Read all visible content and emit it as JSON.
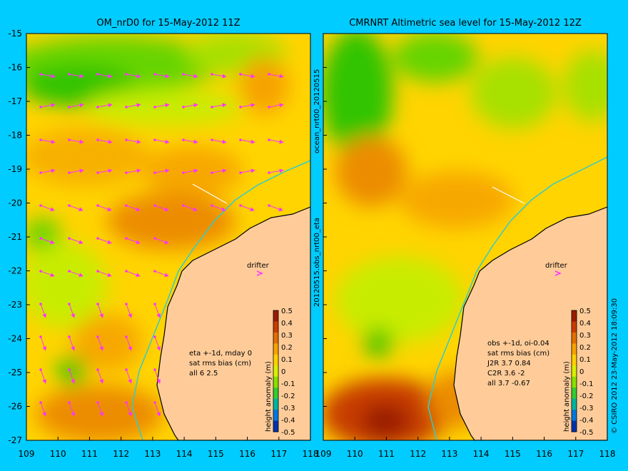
{
  "left_panel": {
    "title": "OM_nrD0 for 15-May-2012 11Z",
    "stats": [
      "eta +-1d, mday 0",
      "sat rms bias (cm)",
      "all 6 2.5"
    ],
    "drifter_label": "drifter"
  },
  "right_panel": {
    "title": "CMRNRT Altimetric sea level  for 15-May-2012 12Z",
    "stats": [
      "obs +-1d, oi-0.04",
      "sat rms bias (cm)",
      "J2R   3.7 0.84",
      "C2R   3.6 -2",
      "all 3.7 -0.67"
    ],
    "drifter_label": "drifter"
  },
  "axes": {
    "x_ticks": [
      "109",
      "110",
      "111",
      "112",
      "113",
      "114",
      "115",
      "116",
      "117",
      "118"
    ],
    "y_ticks": [
      "-15",
      "-16",
      "-17",
      "-18",
      "-19",
      "-20",
      "-21",
      "-22",
      "-23",
      "-24",
      "-25",
      "-26",
      "-27"
    ]
  },
  "colorbar": {
    "label": "height anomaly (m)",
    "ticks": [
      "0.5",
      "0.4",
      "0.3",
      "0.2",
      "0.1",
      "0",
      "-0.1",
      "-0.2",
      "-0.3",
      "-0.4",
      "-0.5"
    ],
    "colors": [
      "#9a1a00",
      "#c83c00",
      "#e46e00",
      "#f7a200",
      "#ffd000",
      "#d8f000",
      "#88e000",
      "#33cc33",
      "#00b3a0",
      "#0077dd",
      "#0033aa"
    ]
  },
  "side_text": {
    "left_top": "ocean_nrt00_20120515",
    "left_bottom": "20120515.obs_nrt00_eta",
    "right": "© CSIRO 2012  23-May-2012 18:09:30"
  }
}
